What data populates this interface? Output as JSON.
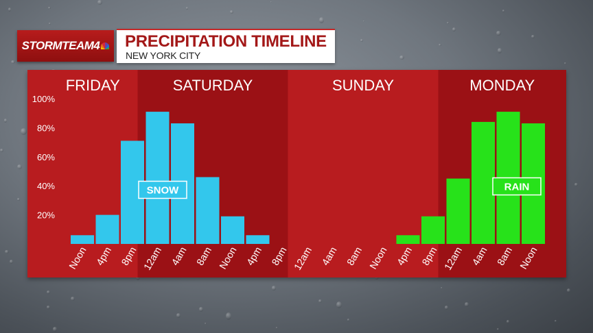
{
  "header": {
    "logo_text": "STORMTEAM4",
    "title": "PRECIPITATION TIMELINE",
    "subtitle": "NEW YORK CITY"
  },
  "colors": {
    "panel_red": "#b81c1f",
    "band_dark": "#9b1115",
    "snow": "#33c7ec",
    "rain": "#27e21a"
  },
  "chart_data": {
    "type": "bar",
    "days": [
      "FRIDAY",
      "SATURDAY",
      "SUNDAY",
      "MONDAY"
    ],
    "categories": [
      "Noon",
      "4pm",
      "8pm",
      "12am",
      "4am",
      "8am",
      "Noon",
      "4pm",
      "8pm",
      "12am",
      "4am",
      "8am",
      "Noon",
      "4pm",
      "8pm",
      "12am",
      "4am",
      "8am",
      "Noon"
    ],
    "series": [
      {
        "name": "SNOW",
        "values": [
          6,
          20,
          71,
          91,
          83,
          46,
          19,
          6,
          0,
          0,
          0,
          0,
          0,
          0,
          0,
          0,
          0,
          0,
          0
        ]
      },
      {
        "name": "RAIN",
        "values": [
          0,
          0,
          0,
          0,
          0,
          0,
          0,
          0,
          0,
          0,
          0,
          0,
          0,
          6,
          19,
          45,
          84,
          91,
          83
        ]
      }
    ],
    "yticks": [
      "100%",
      "80%",
      "60%",
      "40%",
      "20%"
    ],
    "ylim": [
      0,
      100
    ],
    "grid": false,
    "legend": "inline labels"
  }
}
